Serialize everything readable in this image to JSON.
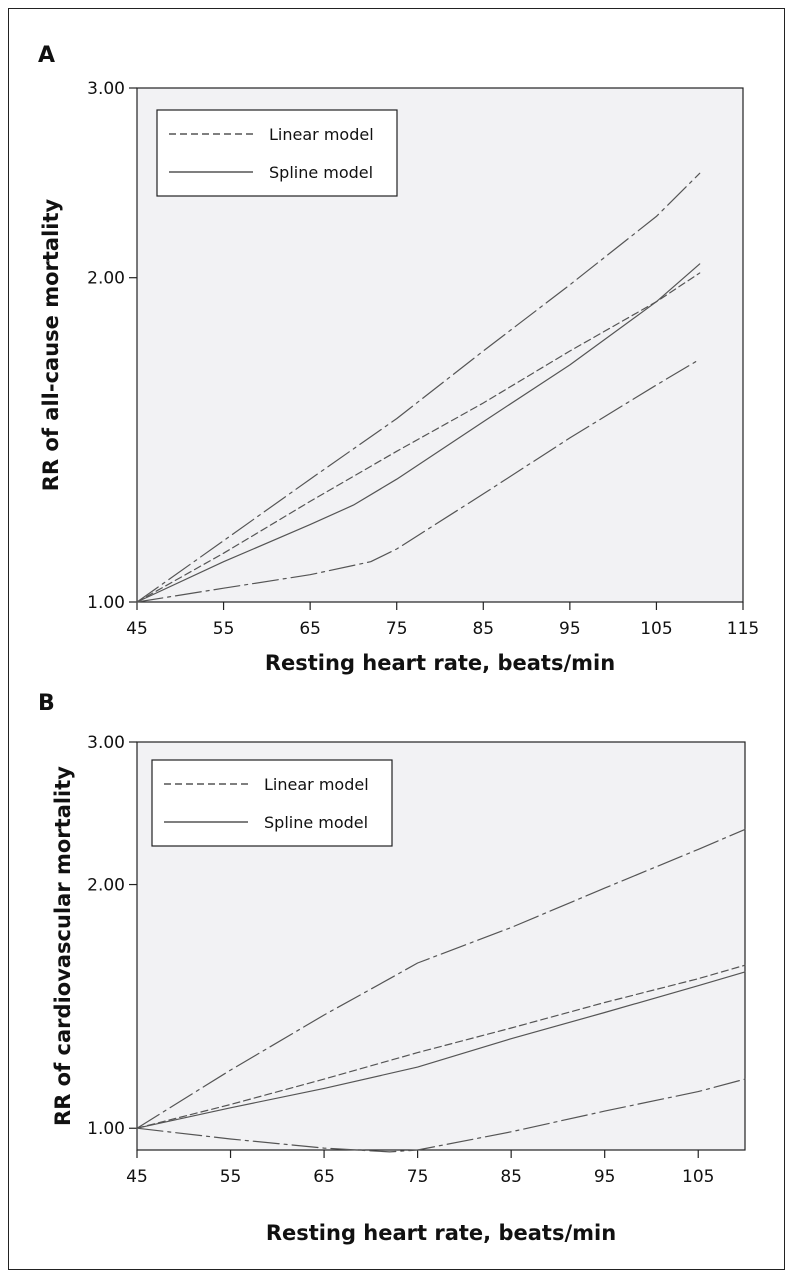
{
  "chart_data": [
    {
      "type": "line",
      "panel": "A",
      "xlabel": "Resting heart rate, beats/min",
      "ylabel": "RR of all-cause mortality",
      "xlim": [
        45,
        115
      ],
      "ylim": [
        1.0,
        3.0
      ],
      "yscale": "log",
      "xticks": [
        45,
        55,
        65,
        75,
        85,
        95,
        105,
        115
      ],
      "yticks": [
        1.0,
        2.0,
        3.0
      ],
      "ytick_labels": [
        "1.00",
        "2.00",
        "3.00"
      ],
      "grid": false,
      "legend": {
        "placement": "top-left",
        "entries": [
          {
            "label": "Linear model",
            "style": "dashed"
          },
          {
            "label": "Spline model",
            "style": "solid"
          }
        ]
      },
      "series": [
        {
          "name": "Linear model",
          "style": "dashed",
          "x": [
            45,
            55,
            65,
            75,
            85,
            95,
            105,
            110
          ],
          "y": [
            1.0,
            1.11,
            1.24,
            1.38,
            1.53,
            1.71,
            1.9,
            2.02
          ]
        },
        {
          "name": "Spline model",
          "style": "solid",
          "x": [
            45,
            55,
            65,
            70,
            75,
            85,
            95,
            105,
            110
          ],
          "y": [
            1.0,
            1.09,
            1.18,
            1.23,
            1.3,
            1.47,
            1.66,
            1.9,
            2.06
          ]
        },
        {
          "style": "long-dash",
          "x": [
            45,
            55,
            65,
            75,
            85,
            95,
            105,
            110
          ],
          "y": [
            1.0,
            1.14,
            1.3,
            1.48,
            1.71,
            1.97,
            2.28,
            2.5
          ]
        },
        {
          "style": "long-dash",
          "x": [
            45,
            55,
            65,
            72,
            75,
            85,
            95,
            105,
            110
          ],
          "y": [
            1.0,
            1.03,
            1.06,
            1.09,
            1.12,
            1.26,
            1.42,
            1.59,
            1.68
          ]
        }
      ]
    },
    {
      "type": "line",
      "panel": "B",
      "xlabel": "Resting heart rate, beats/min",
      "ylabel": "RR of cardiovascular mortality",
      "xlim": [
        45,
        110
      ],
      "ylim": [
        0.94,
        3.0
      ],
      "yscale": "log",
      "xticks": [
        45,
        55,
        65,
        75,
        85,
        95,
        105
      ],
      "yticks": [
        1.0,
        2.0,
        3.0
      ],
      "ytick_labels": [
        "1.00",
        "2.00",
        "3.00"
      ],
      "grid": false,
      "legend": {
        "placement": "top-left",
        "entries": [
          {
            "label": "Linear model",
            "style": "dashed"
          },
          {
            "label": "Spline model",
            "style": "solid"
          }
        ]
      },
      "series": [
        {
          "name": "Linear model",
          "style": "dashed",
          "x": [
            45,
            55,
            65,
            75,
            85,
            95,
            105,
            110
          ],
          "y": [
            1.0,
            1.07,
            1.15,
            1.24,
            1.33,
            1.43,
            1.53,
            1.59
          ]
        },
        {
          "name": "Spline model",
          "style": "solid",
          "x": [
            45,
            55,
            65,
            75,
            85,
            95,
            105,
            110
          ],
          "y": [
            1.0,
            1.06,
            1.12,
            1.19,
            1.29,
            1.39,
            1.5,
            1.56
          ]
        },
        {
          "style": "long-dash",
          "x": [
            45,
            55,
            65,
            72,
            75,
            85,
            95,
            105,
            110
          ],
          "y": [
            1.0,
            1.18,
            1.38,
            1.53,
            1.6,
            1.77,
            1.98,
            2.21,
            2.34
          ]
        },
        {
          "style": "long-dash",
          "x": [
            45,
            55,
            65,
            72,
            75,
            85,
            95,
            105,
            110
          ],
          "y": [
            1.0,
            0.97,
            0.945,
            0.935,
            0.94,
            0.99,
            1.05,
            1.11,
            1.15
          ]
        }
      ]
    }
  ]
}
